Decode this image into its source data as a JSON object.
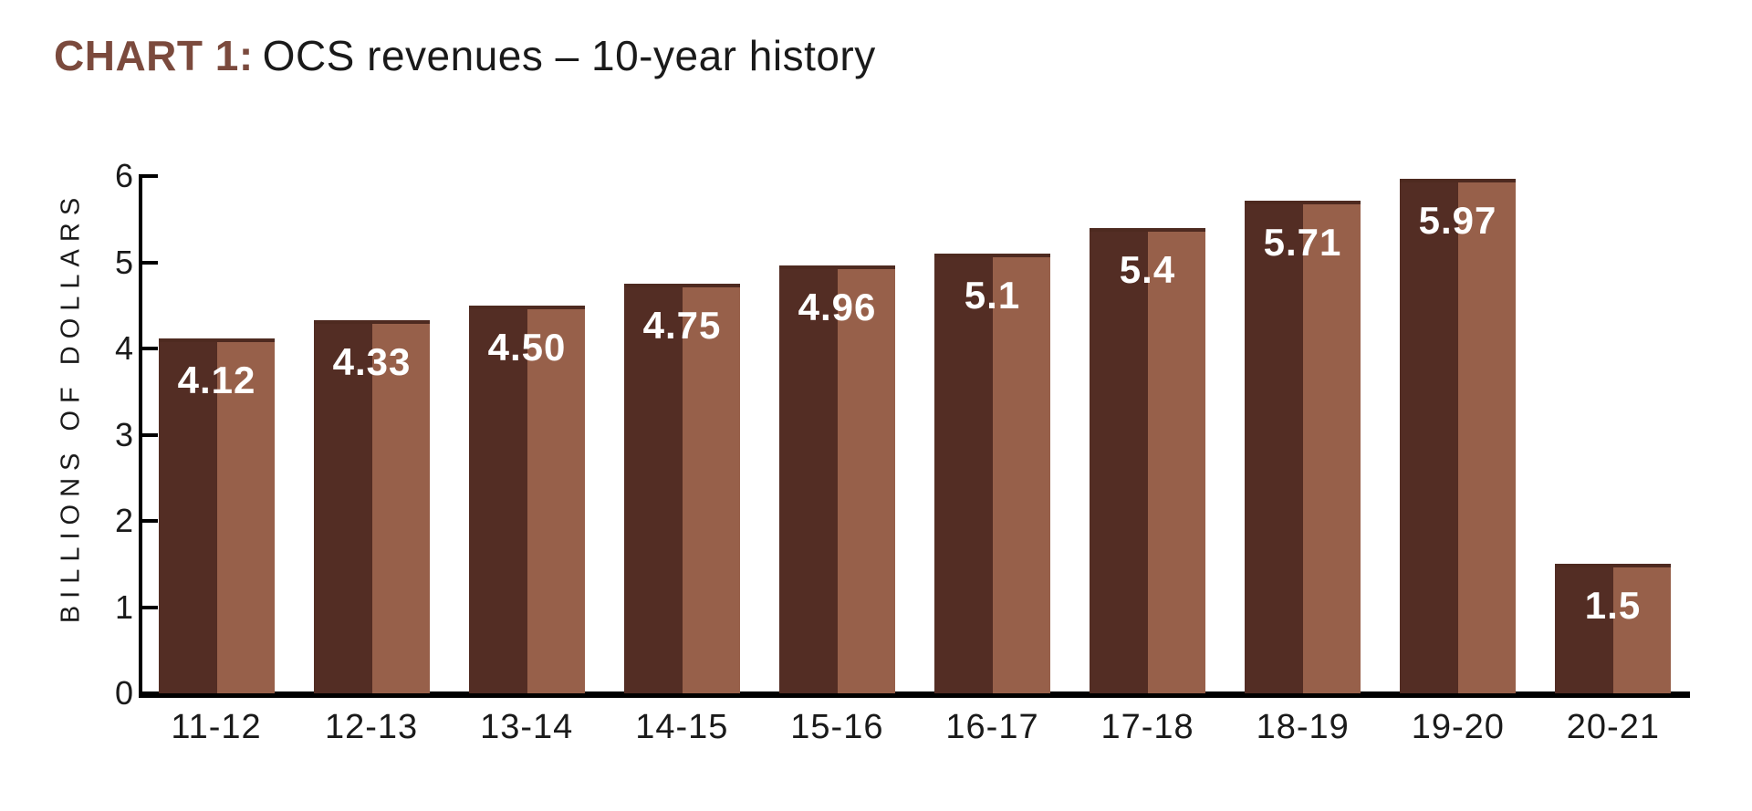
{
  "title": {
    "prefix": "CHART 1:",
    "text": "OCS revenues – 10-year history"
  },
  "chart_data": {
    "type": "bar",
    "title": "CHART 1: OCS revenues – 10-year history",
    "categories": [
      "11-12",
      "12-13",
      "13-14",
      "14-15",
      "15-16",
      "16-17",
      "17-18",
      "18-19",
      "19-20",
      "20-21"
    ],
    "values": [
      4.12,
      4.33,
      4.5,
      4.75,
      4.96,
      5.1,
      5.4,
      5.71,
      5.97,
      1.5
    ],
    "value_labels": [
      "4.12",
      "4.33",
      "4.50",
      "4.75",
      "4.96",
      "5.1",
      "5.4",
      "5.71",
      "5.97",
      "1.5"
    ],
    "xlabel": "",
    "ylabel": "BILLIONS OF DOLLARS",
    "ylim": [
      0,
      6
    ],
    "yticks": [
      0,
      1,
      2,
      3,
      4,
      5,
      6
    ],
    "grid": false,
    "legend": false,
    "colors": {
      "bar_dark": "#532D24",
      "bar_light": "#97604A",
      "bar_top_edge": "#4E2A20",
      "title_accent": "#7B4A3D",
      "text": "#1A1A1A",
      "value_label": "#FFFFFF",
      "background": "#FFFFFF"
    }
  }
}
